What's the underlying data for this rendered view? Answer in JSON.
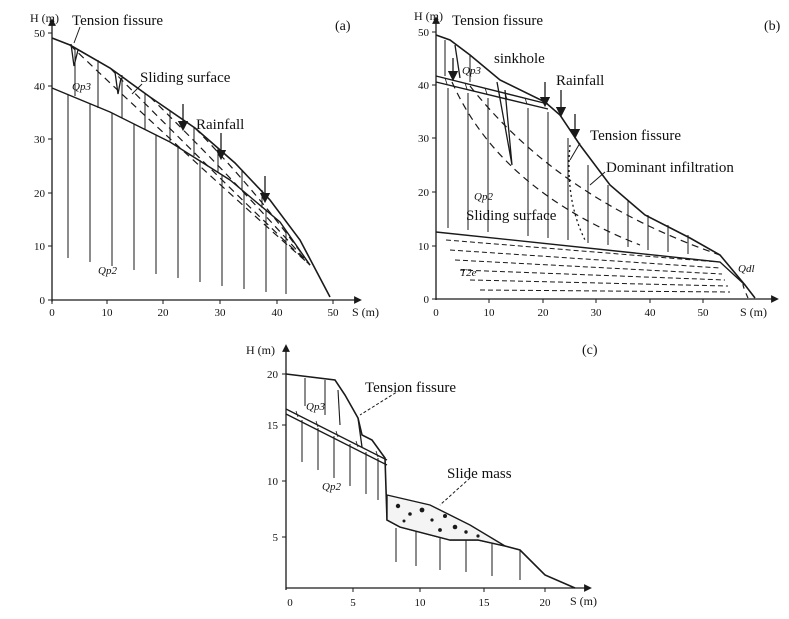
{
  "panel_a": {
    "label": "(a)",
    "y_axis_label": "H (m)",
    "x_axis_label": "S (m)",
    "y_ticks": [
      "0",
      "10",
      "20",
      "30",
      "40",
      "50"
    ],
    "x_ticks": [
      "0",
      "10",
      "20",
      "30",
      "40",
      "50"
    ],
    "annotations": {
      "tension_fissure": "Tension fissure",
      "sliding_surface": "Sliding surface",
      "rainfall": "Rainfall"
    },
    "strata": {
      "upper": "Qp3",
      "lower": "Qp2"
    }
  },
  "panel_b": {
    "label": "(b)",
    "y_axis_label": "H (m)",
    "x_axis_label": "S (m)",
    "y_ticks": [
      "0",
      "10",
      "20",
      "30",
      "40",
      "50"
    ],
    "x_ticks": [
      "0",
      "10",
      "20",
      "30",
      "40",
      "50"
    ],
    "annotations": {
      "tension_fissure_top": "Tension fissure",
      "sinkhole": "sinkhole",
      "rainfall": "Rainfall",
      "tension_fissure_mid": "Tension fissure",
      "dominant_infiltration": "Dominant infiltration",
      "sliding_surface": "Sliding surface"
    },
    "strata": {
      "upper": "Qp3",
      "lower": "Qp2",
      "bedrock": "T2e",
      "deposit": "Qdl"
    }
  },
  "panel_c": {
    "label": "(c)",
    "y_axis_label": "H (m)",
    "x_axis_label": "S (m)",
    "y_ticks": [
      "5",
      "10",
      "15",
      "20"
    ],
    "x_ticks": [
      "0",
      "5",
      "10",
      "15",
      "20"
    ],
    "annotations": {
      "tension_fissure": "Tension fissure",
      "slide_mass": "Slide mass"
    },
    "strata": {
      "upper": "Qp3",
      "lower": "Qp2"
    }
  },
  "colors": {
    "ink": "#1a1a1a",
    "background": "#ffffff"
  }
}
